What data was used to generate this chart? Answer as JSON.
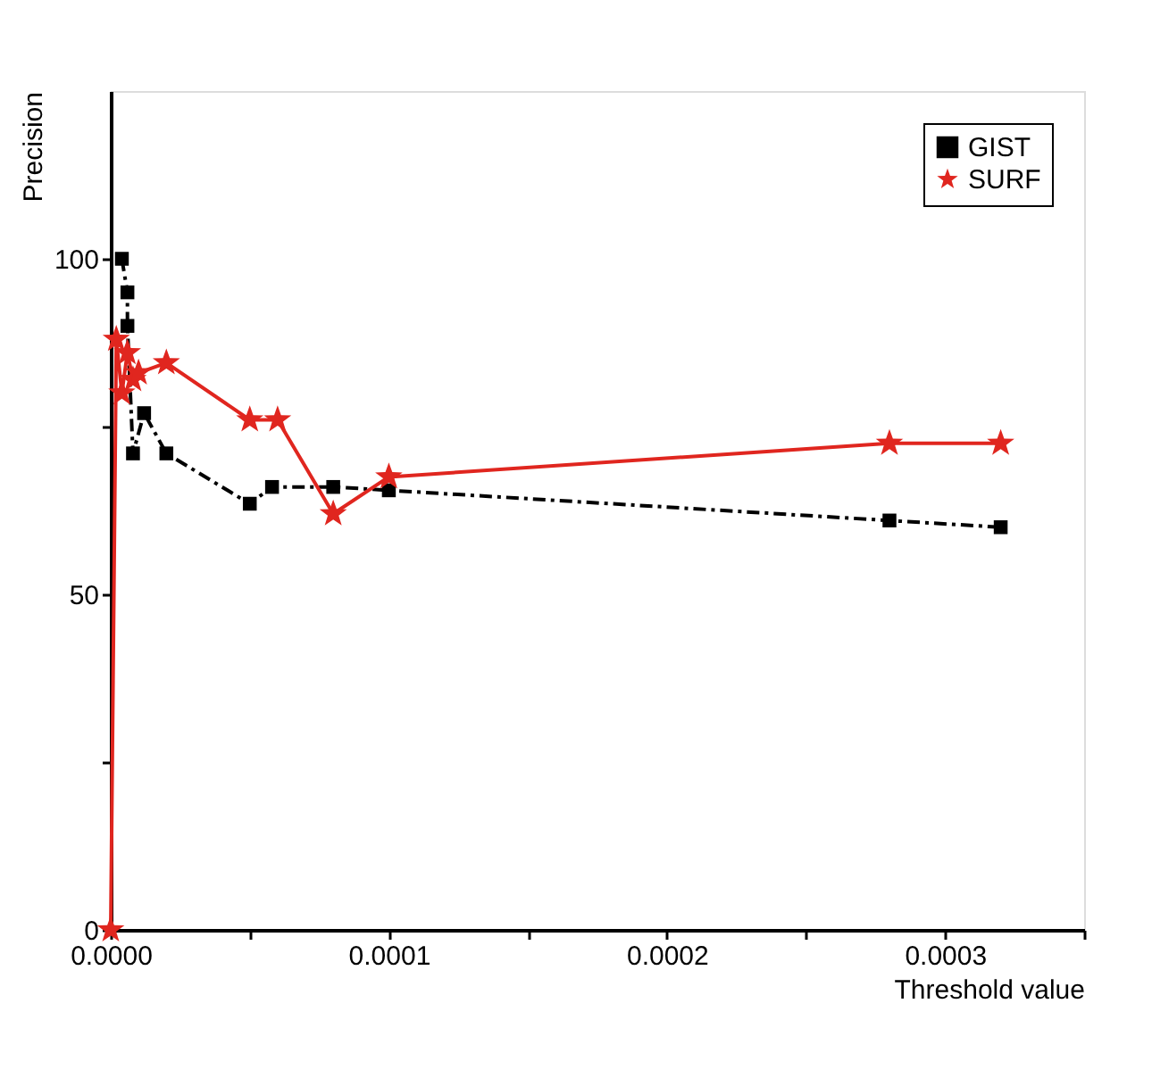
{
  "chart_data": {
    "type": "line",
    "xlabel": "Threshold value",
    "ylabel": "Precision",
    "xlim": [
      0,
      0.00035
    ],
    "ylim": [
      0,
      125
    ],
    "xticks": [
      {
        "value": 0,
        "label": "0.0000"
      },
      {
        "value": 5e-05,
        "label": null
      },
      {
        "value": 0.0001,
        "label": "0.0001"
      },
      {
        "value": 0.00015,
        "label": null
      },
      {
        "value": 0.0002,
        "label": "0.0002"
      },
      {
        "value": 0.00025,
        "label": null
      },
      {
        "value": 0.0003,
        "label": "0.0003"
      },
      {
        "value": 0.00035,
        "label": null
      }
    ],
    "yticks": [
      0,
      {
        "value": 25,
        "label": null
      },
      50,
      {
        "value": 75,
        "label": null
      },
      100
    ],
    "grid": false,
    "legend": "top right",
    "series": [
      {
        "name": "GIST",
        "color": "#000000",
        "marker": "square",
        "line_style": "dashdot",
        "x": [
          4e-06,
          6e-06,
          6e-06,
          8e-06,
          1.2e-05,
          2e-05,
          5e-05,
          5.8e-05,
          8e-05,
          0.0001,
          0.00028,
          0.00032
        ],
        "values": [
          100,
          95,
          90,
          71,
          77,
          71,
          63.5,
          66,
          66,
          65.5,
          61,
          60
        ]
      },
      {
        "name": "SURF",
        "color": "#e0261f",
        "marker": "star",
        "line_style": "solid",
        "x": [
          0,
          2e-06,
          4e-06,
          6e-06,
          8e-06,
          1e-05,
          2e-05,
          5e-05,
          6e-05,
          8e-05,
          0.0001,
          0.00028,
          0.00032
        ],
        "values": [
          0,
          88,
          80,
          86,
          82,
          83,
          84.5,
          76,
          76,
          62,
          67.5,
          72.5,
          72.5
        ]
      }
    ]
  }
}
